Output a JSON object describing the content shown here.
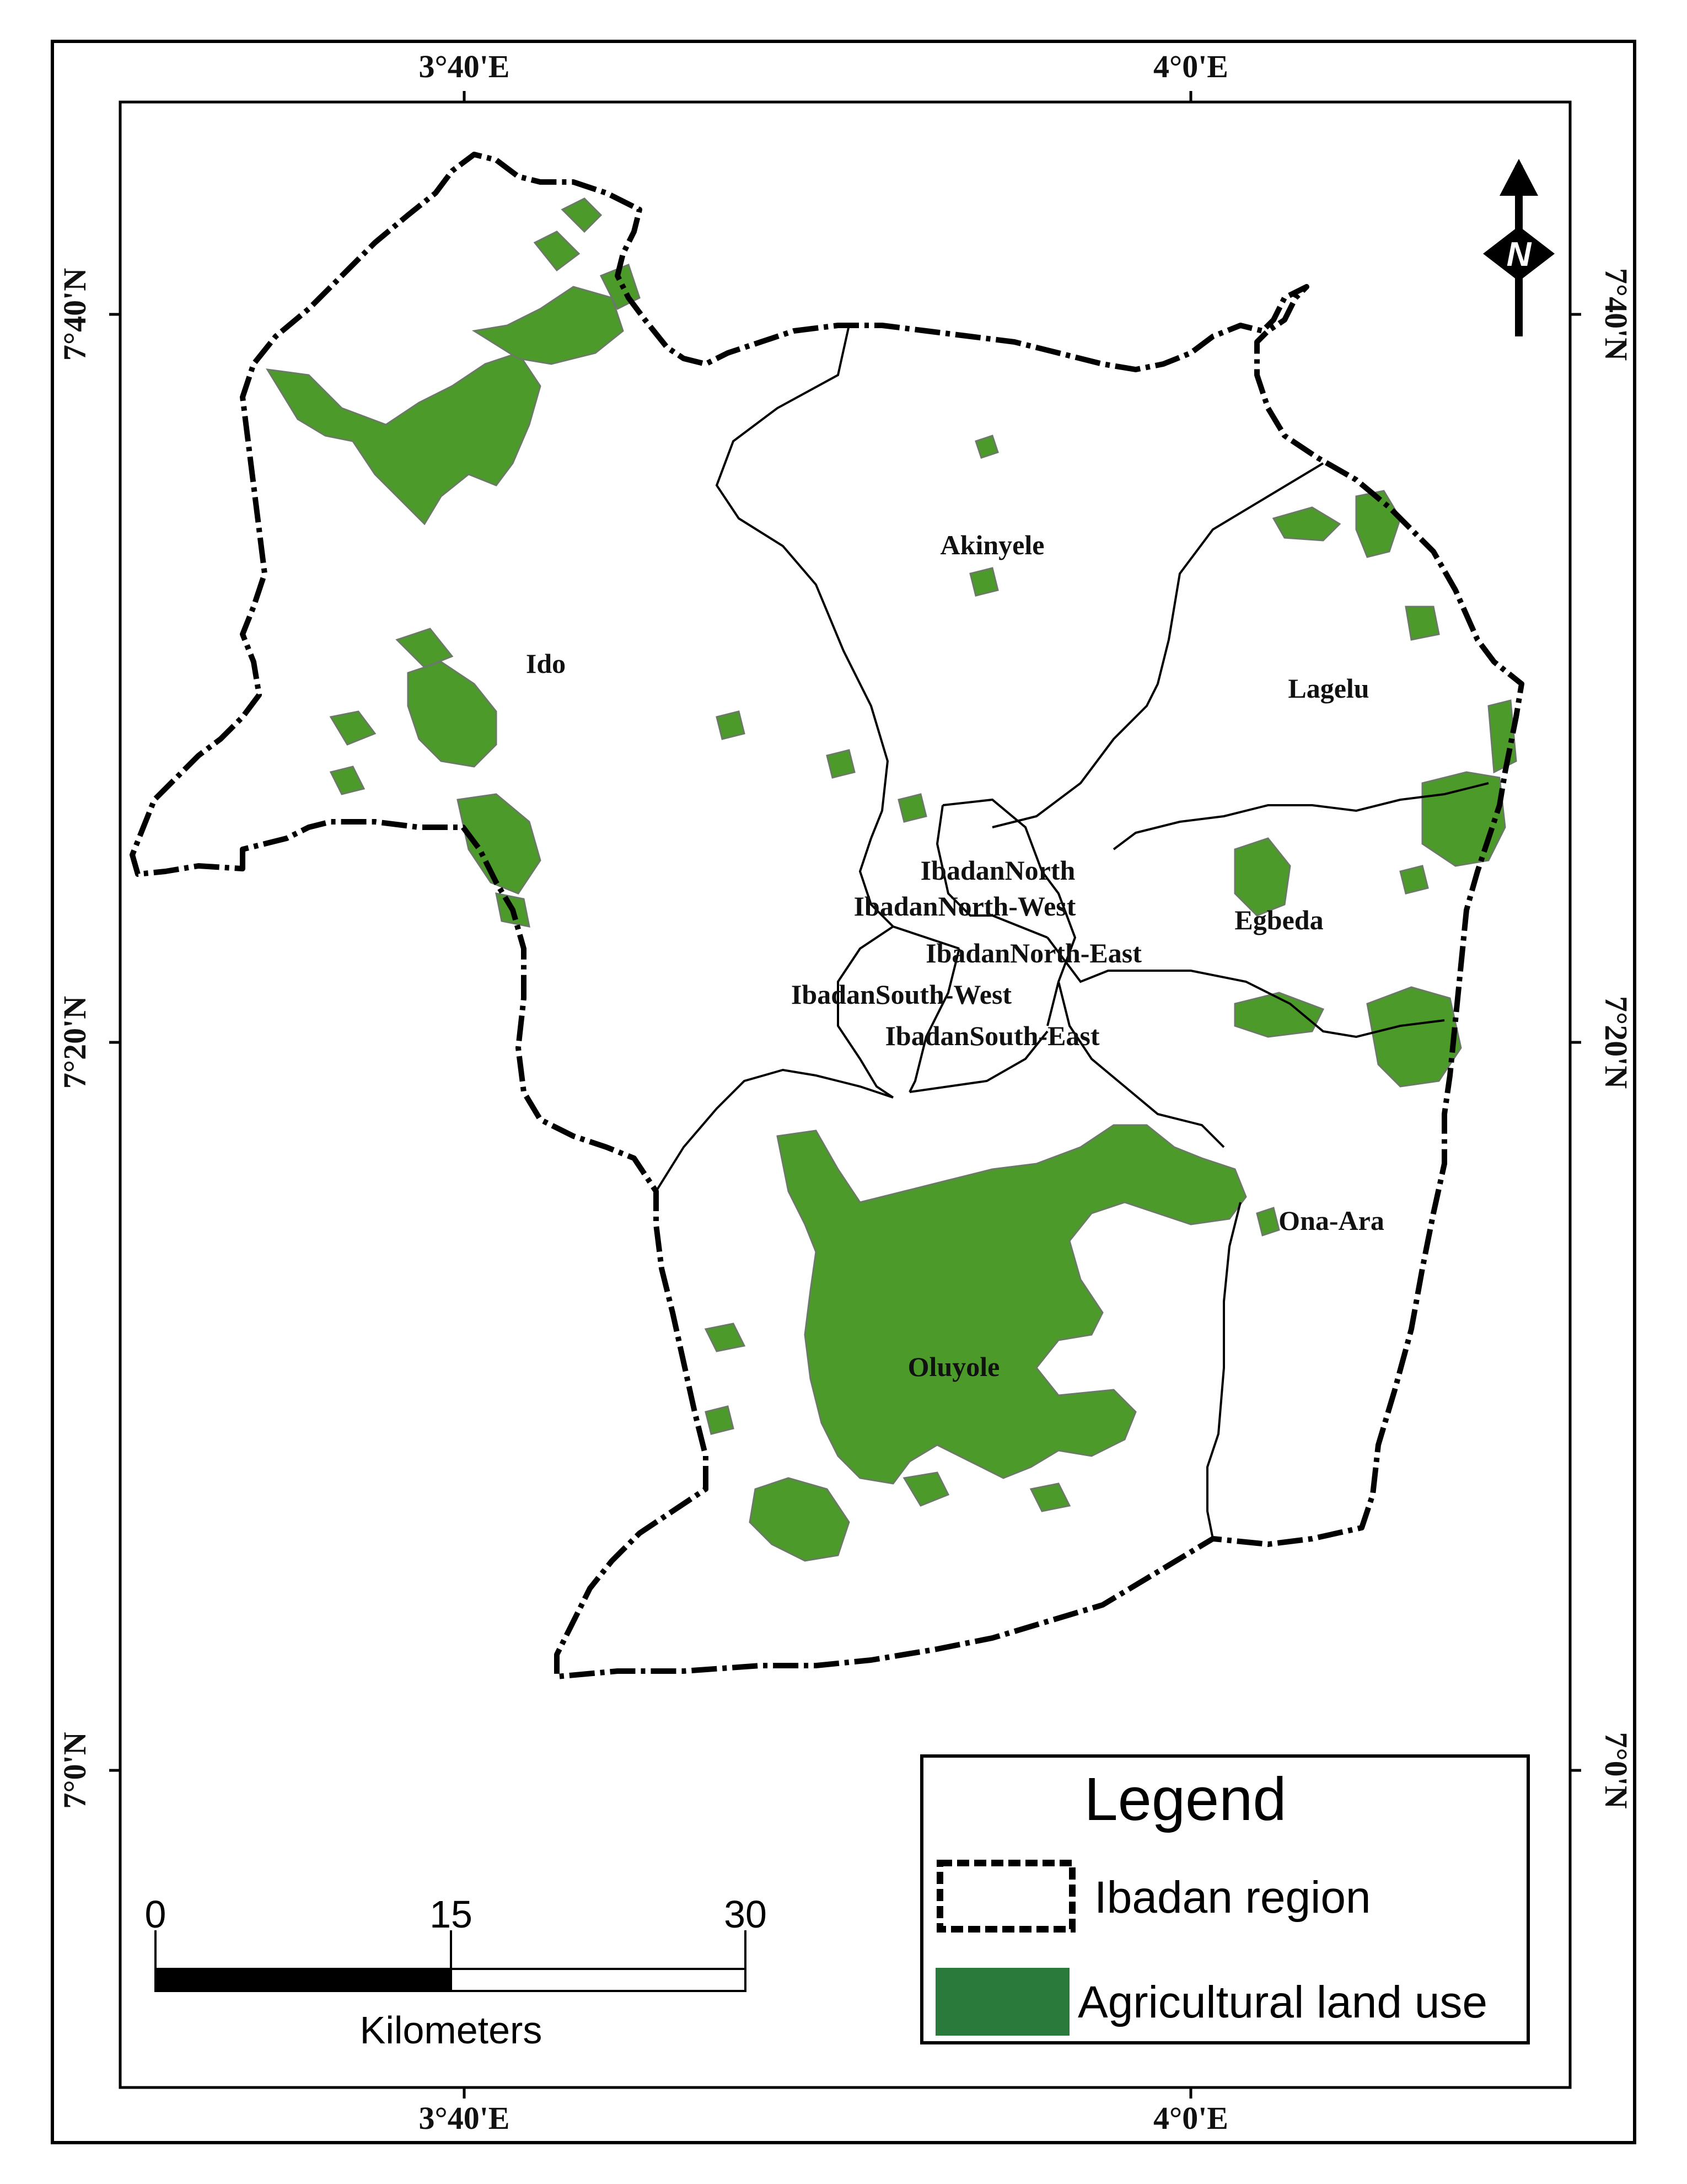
{
  "map": {
    "graticule": {
      "top_labels": [
        "3°40'E",
        "4°0'E"
      ],
      "bottom_labels": [
        "3°40'E",
        "4°0'E"
      ],
      "left_labels": [
        "7°40'N",
        "7°20'N",
        "7°0'N"
      ],
      "right_labels": [
        "7°40'N",
        "7°20'N",
        "7°0'N"
      ]
    },
    "districts": [
      "Ido",
      "Akinyele",
      "Lagelu",
      "IbadanNorth",
      "IbadanNorth-West",
      "IbadanNorth-East",
      "IbadanSouth-West",
      "IbadanSouth-East",
      "Egbeda",
      "Ona-Ara",
      "Oluyole"
    ],
    "north_arrow": {
      "label": "N"
    },
    "legend": {
      "title": "Legend",
      "items": [
        {
          "label": "Ibadan region",
          "symbol": "dashed-boundary-box"
        },
        {
          "label": "Agricultural land use",
          "symbol": "green-fill-box",
          "color": "#2a7a3b"
        }
      ]
    },
    "scale_bar": {
      "ticks": [
        "0",
        "15",
        "30"
      ],
      "unit": "Kilometers"
    },
    "colors": {
      "agriculture": "#4c9a2a",
      "legend_agriculture": "#2a7a3b",
      "boundary": "#000000"
    }
  }
}
